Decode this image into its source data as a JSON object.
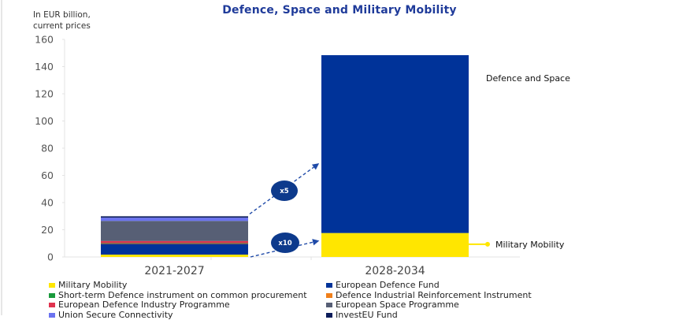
{
  "chart_data": {
    "type": "bar",
    "stacked": true,
    "title": "Defence, Space and Military Mobility",
    "ylabel": "In EUR billion, current prices",
    "xlabel": "",
    "ylim": [
      0,
      160
    ],
    "yticks": [
      0,
      20,
      40,
      60,
      80,
      100,
      120,
      140,
      160
    ],
    "grid": false,
    "categories": [
      "2021-2027",
      "2028-2034"
    ],
    "series": [
      {
        "name": "Military Mobility",
        "color": "#ffe600",
        "values": [
          1.7,
          17.6
        ]
      },
      {
        "name": "European Defence Fund",
        "color": "#003399",
        "values": [
          7.9,
          0
        ]
      },
      {
        "name": "Defence Industrial Reinforcement Instrument",
        "color": "#f07f1a",
        "values": [
          0.3,
          0
        ]
      },
      {
        "name": "Short-term Defence instrument on common procurement",
        "color": "#1a9a3c",
        "values": [
          0.3,
          0
        ]
      },
      {
        "name": "European Defence Industry Programme",
        "color": "#e0334e",
        "values": [
          1.5,
          0
        ]
      },
      {
        "name": "European Space Programme",
        "color": "#575f75",
        "values": [
          14.8,
          0
        ]
      },
      {
        "name": "Union Secure Connectivity",
        "color": "#6b73f0",
        "values": [
          2.4,
          0
        ]
      },
      {
        "name": "InvestEU Fund",
        "color": "#0b1c5a",
        "values": [
          1.0,
          0
        ]
      },
      {
        "name": "Defence and Space",
        "color": "#003399",
        "values": [
          0,
          130.8
        ]
      }
    ],
    "annotations": [
      {
        "text": "Defence and Space",
        "target": "2028-2034 Defence and Space segment"
      },
      {
        "text": "Military Mobility",
        "target": "2028-2034 Military Mobility segment"
      },
      {
        "text": "x5",
        "meaning": "Defence and Space growth multiplier"
      },
      {
        "text": "x10",
        "meaning": "Military Mobility growth multiplier"
      }
    ],
    "legend": {
      "placement": "bottom",
      "entries": [
        {
          "label": "Military Mobility",
          "color": "#ffe600"
        },
        {
          "label": "European Defence Fund",
          "color": "#003399"
        },
        {
          "label": "Short-term Defence instrument on common procurement",
          "color": "#1a9a3c"
        },
        {
          "label": "Defence Industrial Reinforcement Instrument",
          "color": "#f07f1a"
        },
        {
          "label": "European Defence Industry Programme",
          "color": "#e0334e"
        },
        {
          "label": "European Space Programme",
          "color": "#575f75"
        },
        {
          "label": "Union Secure Connectivity",
          "color": "#6b73f0"
        },
        {
          "label": "InvestEU Fund",
          "color": "#0b1c5a"
        }
      ]
    }
  },
  "labels": {
    "title": "Defence, Space and Military Mobility",
    "unit_line1": "In EUR billion,",
    "unit_line2": "current prices",
    "defence_space": "Defence and Space",
    "military_mobility": "Military Mobility",
    "x5": "x5",
    "x10": "x10"
  },
  "colors": {
    "title": "#1f3b9a",
    "badge": "#0d3a8c",
    "arrow": "#1f4aa8",
    "axis": "#e3e3e3"
  }
}
